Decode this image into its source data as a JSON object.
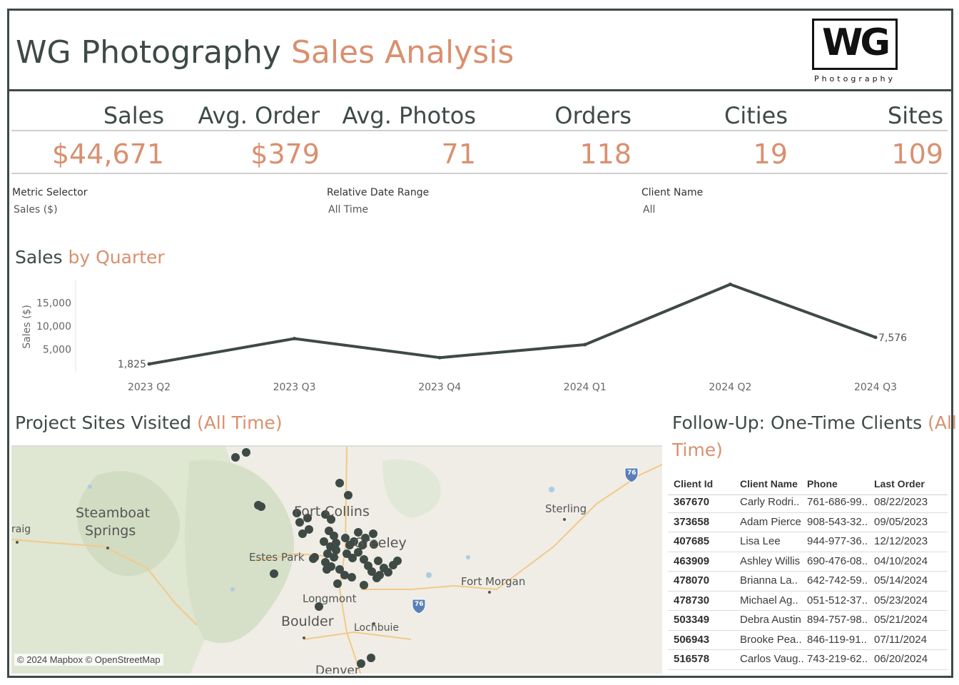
{
  "header": {
    "title_part1": "WG Photography",
    "title_part2": "Sales Analysis",
    "logo_text": "WG",
    "logo_subtitle": "Photography"
  },
  "kpis": [
    {
      "label": "Sales",
      "value": "$44,671"
    },
    {
      "label": "Avg. Order",
      "value": "$379"
    },
    {
      "label": "Avg. Photos",
      "value": "71"
    },
    {
      "label": "Orders",
      "value": "118"
    },
    {
      "label": "Cities",
      "value": "19"
    },
    {
      "label": "Sites",
      "value": "109"
    }
  ],
  "filters": [
    {
      "label": "Metric Selector",
      "value": "Sales ($)"
    },
    {
      "label": "Relative Date Range",
      "value": "All Time"
    },
    {
      "label": "Client Name",
      "value": "All"
    }
  ],
  "sales_chart": {
    "title_part1": "Sales",
    "title_part2": "by Quarter"
  },
  "chart_data": {
    "type": "line",
    "title": "Sales by Quarter",
    "xlabel": "",
    "ylabel": "Sales ($)",
    "categories": [
      "2023 Q2",
      "2023 Q3",
      "2023 Q4",
      "2024 Q1",
      "2024 Q2",
      "2024 Q3"
    ],
    "series": [
      {
        "values": [
          1825,
          7300,
          3200,
          6000,
          19000,
          7576
        ]
      }
    ],
    "data_labels": {
      "0": "1,825",
      "5": "7,576"
    },
    "yticks": [
      5000,
      10000,
      15000
    ],
    "ytick_labels": [
      "5,000",
      "10,000",
      "15,000"
    ],
    "ylim": [
      0,
      20000
    ],
    "grid": false,
    "line_color": "#3e4a45"
  },
  "map_section": {
    "title_part1": "Project Sites Visited",
    "title_part2": "(All Time)",
    "labels": [
      "Steamboat",
      "Springs",
      "raig",
      "Estes Park",
      "Fort Collins",
      "Greeley",
      "Longmont",
      "Boulder",
      "Lochbuie",
      "Denver",
      "Sterling",
      "Fort Morgan",
      "76"
    ],
    "credit": "© 2024 Mapbox © OpenStreetMap"
  },
  "followup": {
    "title_part1": "Follow-Up: One-Time Clients",
    "title_part2": "(All",
    "title_part3": "Time)",
    "columns": [
      "Client Id",
      "Client Name",
      "Phone",
      "Last Order"
    ],
    "rows": [
      [
        "367670",
        "Carly Rodri..",
        "761-686-99..",
        "08/22/2023"
      ],
      [
        "373658",
        "Adam Pierce",
        "908-543-32..",
        "09/05/2023"
      ],
      [
        "407685",
        "Lisa Lee",
        "944-977-36..",
        "12/12/2023"
      ],
      [
        "463909",
        "Ashley Willis",
        "690-476-08..",
        "04/10/2024"
      ],
      [
        "478070",
        "Brianna La..",
        "642-742-59..",
        "05/14/2024"
      ],
      [
        "478730",
        "Michael Ag..",
        "051-512-37..",
        "05/23/2024"
      ],
      [
        "503349",
        "Debra Austin",
        "894-757-98..",
        "05/21/2024"
      ],
      [
        "506943",
        "Brooke Pea..",
        "846-119-91..",
        "07/11/2024"
      ],
      [
        "516578",
        "Carlos Vaug..",
        "743-219-62..",
        "06/20/2024"
      ]
    ]
  },
  "colors": {
    "dark": "#3e4a45",
    "accent": "#d9906f"
  }
}
